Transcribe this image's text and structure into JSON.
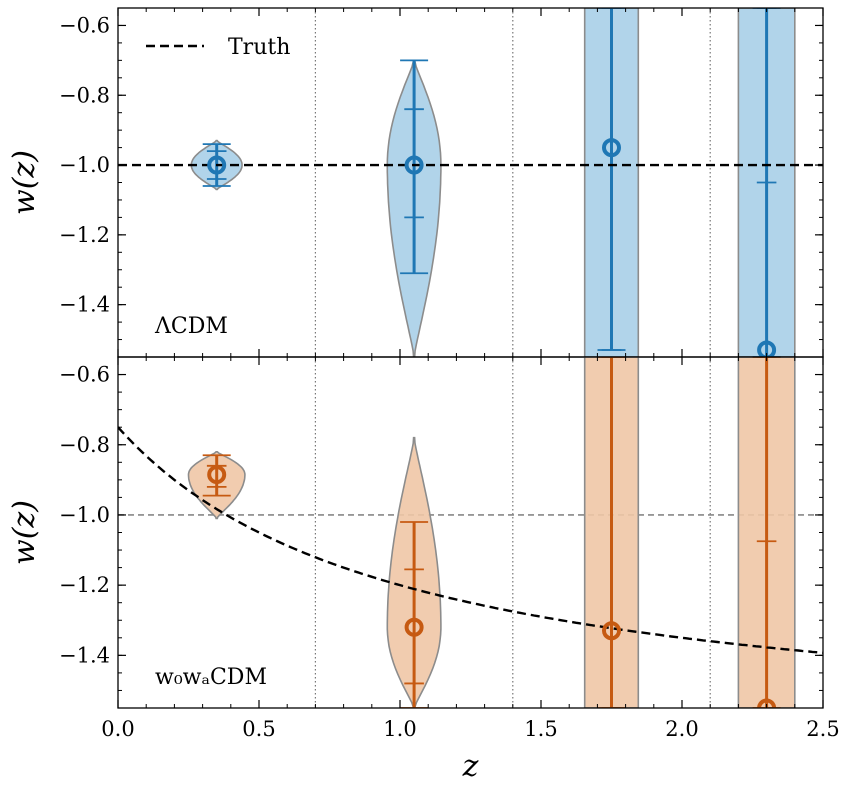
{
  "colors": {
    "blue": "#1f77b4",
    "blue_fill": "#a8cfe8",
    "orange": "#c65a12",
    "orange_fill": "#efc6a6",
    "violin_edge": "#8c8c8c",
    "truth": "#000000",
    "ref_line": "#888888",
    "bin_line": "#777777"
  },
  "chart_data": {
    "type": "violin",
    "xlabel": "z",
    "xlim": [
      0,
      2.5
    ],
    "xticks": [
      0.0,
      0.5,
      1.0,
      1.5,
      2.0,
      2.5
    ],
    "xtick_labels": [
      "0.0",
      "0.5",
      "1.0",
      "1.5",
      "2.0",
      "2.5"
    ],
    "bin_edges": [
      0.7,
      1.4,
      2.1
    ],
    "legend": [
      {
        "label": "Truth",
        "style": "dashed",
        "location": "top-left"
      }
    ],
    "panels": [
      {
        "label": "ΛCDM",
        "ylabel": "w(z)",
        "ylim": [
          -1.55,
          -0.55
        ],
        "yticks": [
          -1.4,
          -1.2,
          -1.0,
          -0.8,
          -0.6
        ],
        "ytick_labels": [
          "−1.4",
          "−1.2",
          "−1.0",
          "−0.8",
          "−0.6"
        ],
        "color": "blue",
        "truth": {
          "type": "constant",
          "w": -1.0
        },
        "reference_line": null,
        "points": [
          {
            "z": 0.35,
            "median": -1.0,
            "inner": [
              -1.04,
              -0.96
            ],
            "outer": [
              -1.06,
              -0.94
            ],
            "violin_range": [
              -1.07,
              -0.93
            ],
            "half_width_z": 0.09
          },
          {
            "z": 1.05,
            "median": -1.0,
            "inner": [
              -1.15,
              -0.84
            ],
            "outer": [
              -1.31,
              -0.7
            ],
            "violin_range": [
              -1.55,
              -0.7
            ],
            "half_width_z": 0.095
          },
          {
            "z": 1.75,
            "median": -0.95,
            "inner": [
              -1.53,
              -0.55
            ],
            "outer": [
              -1.53,
              -0.55
            ],
            "violin_range": [
              -1.55,
              -0.55
            ],
            "half_width_z": 0.095
          },
          {
            "z": 2.3,
            "median": -1.53,
            "inner": [
              -1.05,
              -0.55
            ],
            "outer": [
              -1.55,
              -0.55
            ],
            "violin_range": [
              -1.55,
              -0.55
            ],
            "half_width_z": 0.1
          }
        ]
      },
      {
        "label": "w₀wₐCDM",
        "ylabel": "w(z)",
        "ylim": [
          -1.55,
          -0.55
        ],
        "yticks": [
          -1.4,
          -1.2,
          -1.0,
          -0.8,
          -0.6
        ],
        "ytick_labels": [
          "−1.4",
          "−1.2",
          "−1.0",
          "−0.8",
          "−0.6"
        ],
        "color": "orange",
        "truth": {
          "type": "w0wa",
          "w0": -0.75,
          "wa": -0.9
        },
        "reference_line": {
          "w": -1.0
        },
        "points": [
          {
            "z": 0.35,
            "median": -0.885,
            "inner": [
              -0.92,
              -0.86
            ],
            "outer": [
              -0.945,
              -0.83
            ],
            "violin_range": [
              -1.01,
              -0.82
            ],
            "half_width_z": 0.1
          },
          {
            "z": 1.05,
            "median": -1.32,
            "inner": [
              -1.48,
              -1.155
            ],
            "outer": [
              -1.55,
              -1.02
            ],
            "violin_range": [
              -1.55,
              -0.78
            ],
            "half_width_z": 0.095
          },
          {
            "z": 1.75,
            "median": -1.33,
            "inner": [
              -1.55,
              -0.55
            ],
            "outer": [
              -1.55,
              -0.55
            ],
            "violin_range": [
              -1.55,
              -0.55
            ],
            "half_width_z": 0.095
          },
          {
            "z": 2.3,
            "median": -1.55,
            "inner": [
              -1.075,
              -0.55
            ],
            "outer": [
              -1.55,
              -0.55
            ],
            "violin_range": [
              -1.55,
              -0.55
            ],
            "half_width_z": 0.1
          }
        ]
      }
    ]
  }
}
